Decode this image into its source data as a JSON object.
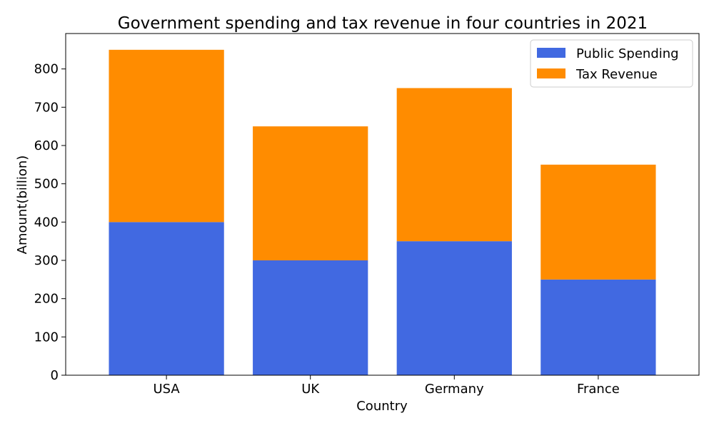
{
  "chart_data": {
    "type": "bar",
    "stacked": true,
    "title": "Government spending and tax revenue in four countries in 2021",
    "xlabel": "Country",
    "ylabel": "Amount(billion)",
    "categories": [
      "USA",
      "UK",
      "Germany",
      "France"
    ],
    "series": [
      {
        "name": "Public Spending",
        "values": [
          400,
          300,
          350,
          250
        ],
        "color": "#4169e1"
      },
      {
        "name": "Tax Revenue",
        "values": [
          450,
          350,
          400,
          300
        ],
        "color": "#ff8c00"
      }
    ],
    "ylim": [
      0,
      892.5
    ],
    "yticks": [
      0,
      100,
      200,
      300,
      400,
      500,
      600,
      700,
      800
    ],
    "grid": false,
    "legend_position": "top-right"
  }
}
